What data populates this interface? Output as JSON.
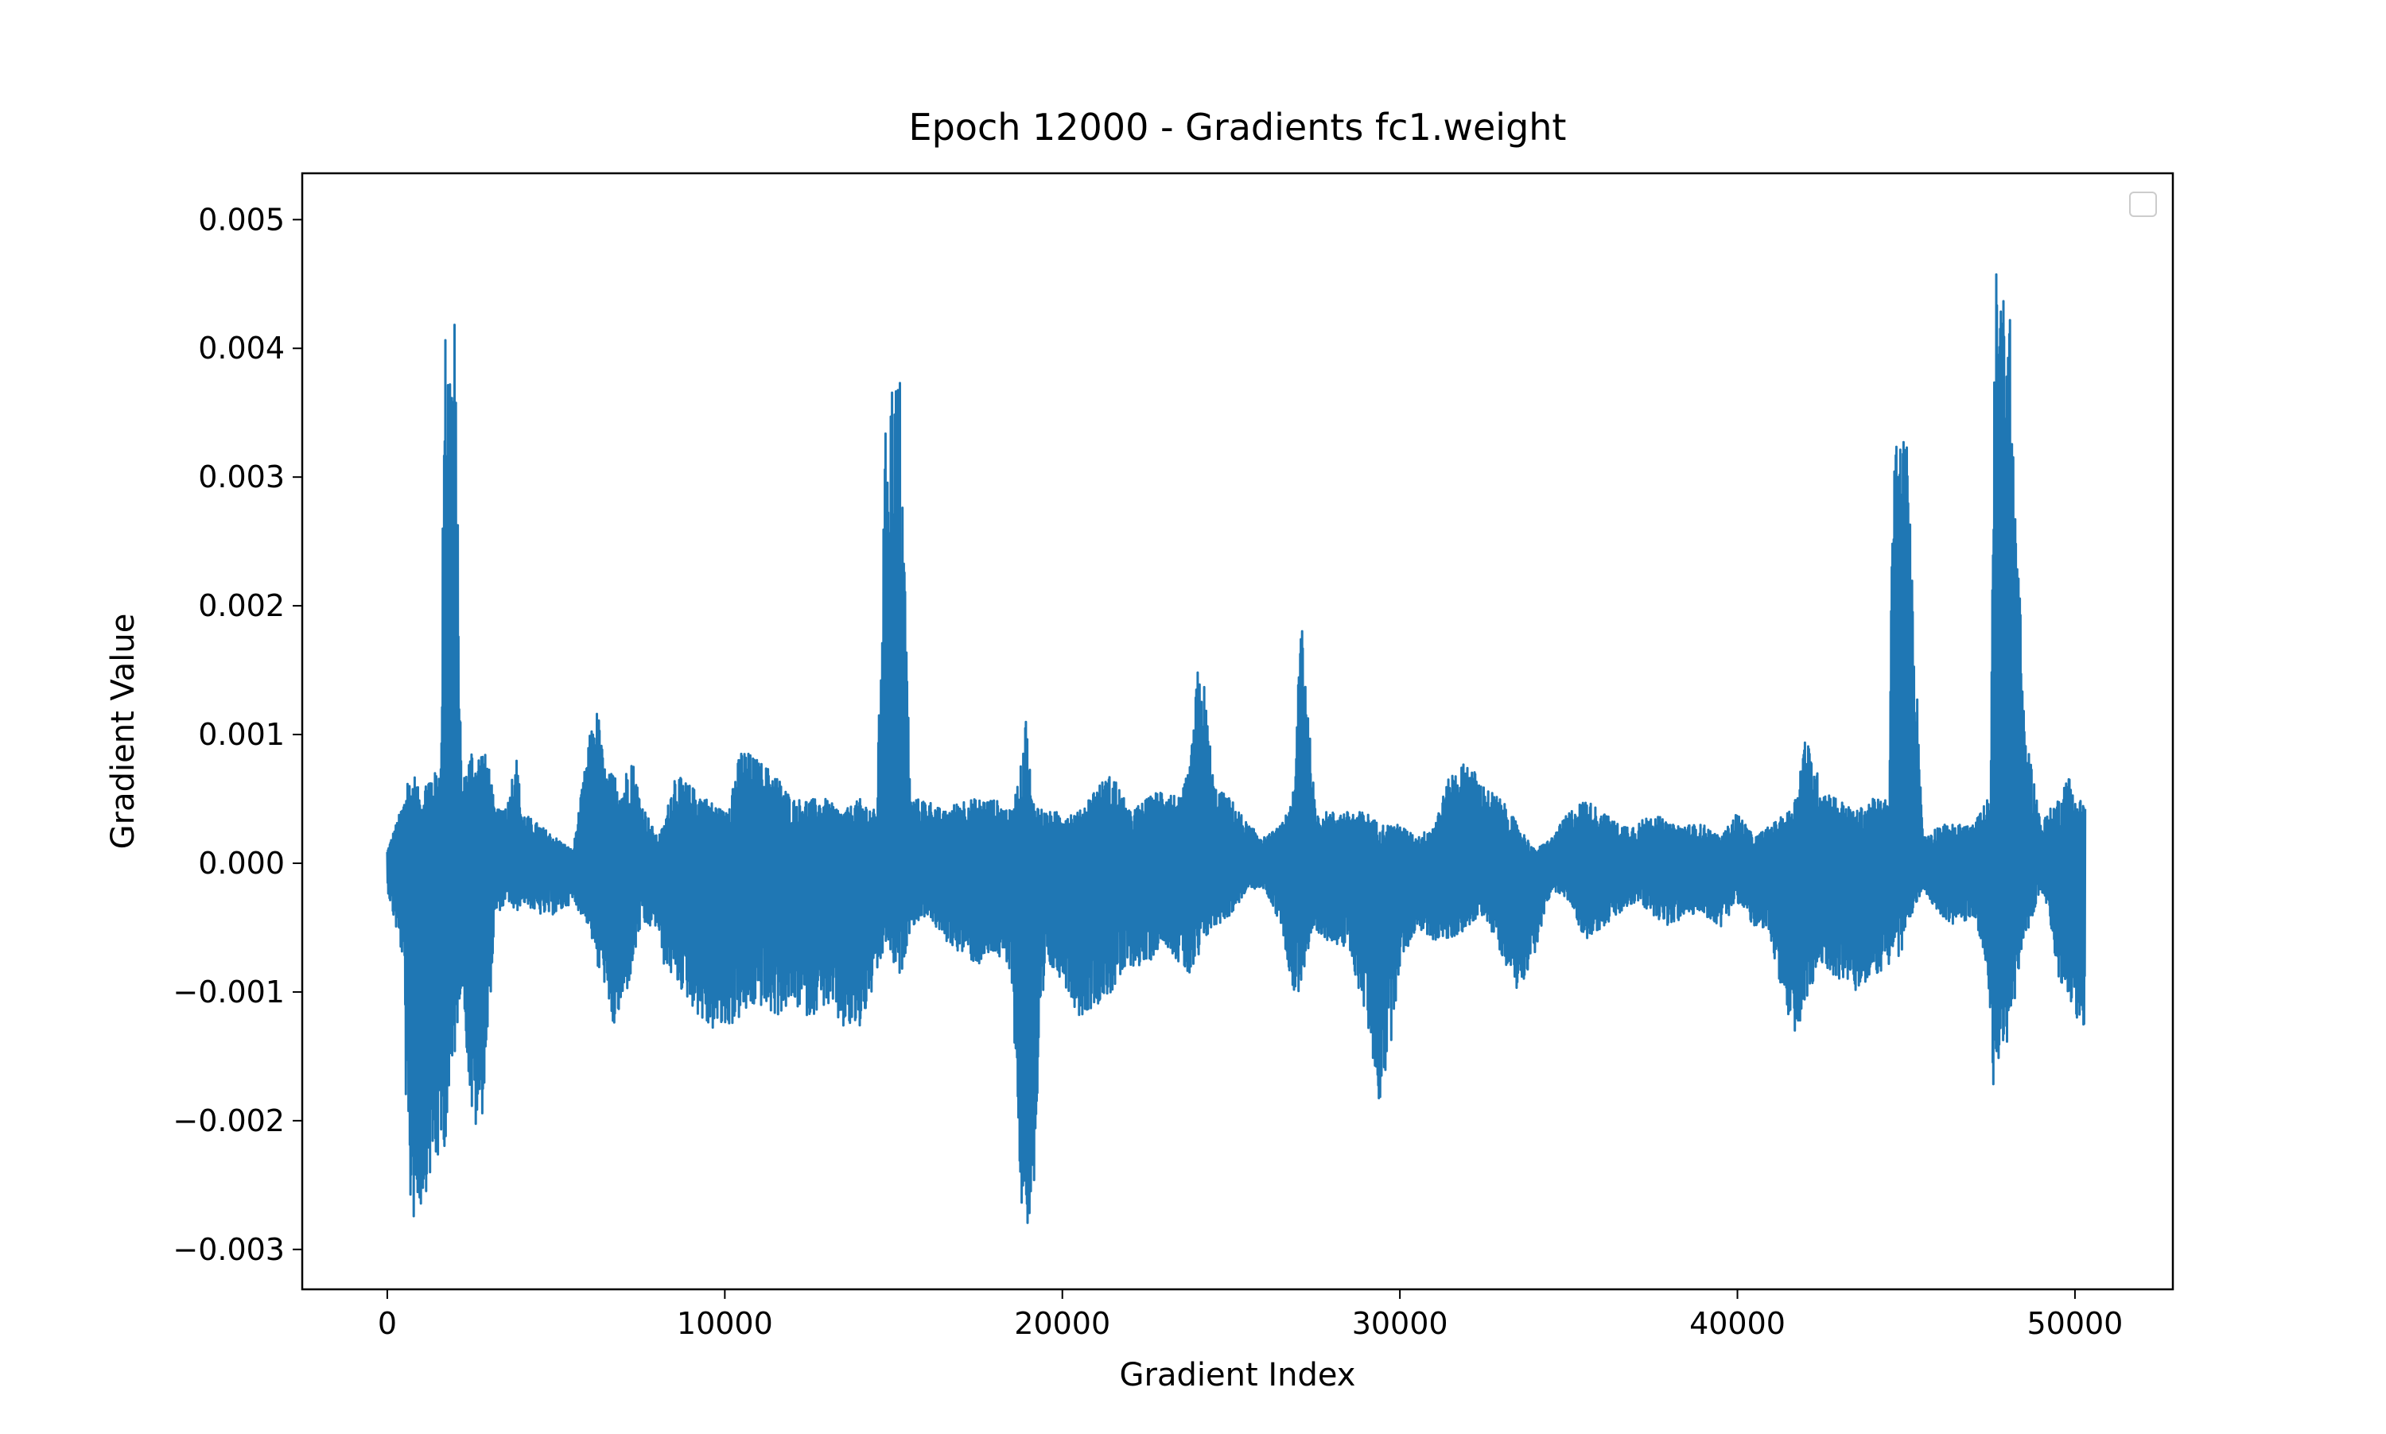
{
  "chart_data": {
    "type": "line",
    "title": "Epoch 12000 - Gradients fc1.weight",
    "xlabel": "Gradient Index",
    "ylabel": "Gradient Value",
    "xlim": [
      -2520,
      52900
    ],
    "ylim": [
      -0.00331,
      0.00536
    ],
    "x_ticks": [
      0,
      10000,
      20000,
      30000,
      40000,
      50000
    ],
    "x_tick_labels": [
      "0",
      "10000",
      "20000",
      "30000",
      "40000",
      "50000"
    ],
    "y_ticks": [
      -0.003,
      -0.002,
      -0.001,
      0.0,
      0.001,
      0.002,
      0.003,
      0.004,
      0.005
    ],
    "y_tick_labels": [
      "−0.003",
      "−0.002",
      "−0.001",
      "0.000",
      "0.001",
      "0.002",
      "0.003",
      "0.004",
      "0.005"
    ],
    "grid": false,
    "legend": "upper right (empty)",
    "line_color": "#1f77b4",
    "series": [
      {
        "x": [
          0,
          500,
          600,
          700,
          800,
          1000,
          1200,
          1400,
          1600,
          1700,
          1800,
          1900,
          2000,
          2200,
          2500,
          2600,
          2800,
          3000,
          3200,
          3600,
          3800,
          4000,
          4500,
          5000,
          5500,
          6000,
          6200,
          6300,
          6400,
          6500,
          6700,
          7000,
          7200,
          7500,
          8000,
          8200,
          8500,
          9000,
          9500,
          10000,
          10500,
          11000,
          11500,
          12000,
          12500,
          13000,
          13500,
          14000,
          14500,
          14800,
          14900,
          15000,
          15200,
          15500,
          16000,
          16500,
          17000,
          17500,
          18000,
          18500,
          18800,
          18900,
          19000,
          19100,
          19500,
          20000,
          20500,
          21000,
          21500,
          22000,
          22500,
          23000,
          23500,
          23800,
          24000,
          24200,
          24500,
          25000,
          25500,
          26000,
          26500,
          26900,
          27000,
          27100,
          27300,
          27500,
          28000,
          28500,
          29000,
          29400,
          29500,
          29600,
          30000,
          30500,
          31000,
          31500,
          32000,
          32500,
          33000,
          33500,
          34000,
          34500,
          35000,
          35500,
          36000,
          36500,
          37000,
          37500,
          38000,
          38500,
          39000,
          39500,
          40000,
          40500,
          41000,
          41500,
          41700,
          42000,
          42500,
          43000,
          43500,
          44000,
          44400,
          44500,
          44600,
          44700,
          44800,
          45000,
          45500,
          46000,
          46500,
          47000,
          47400,
          47500,
          47600,
          47700,
          47800,
          48000,
          48500,
          49000,
          49200,
          49500,
          49800,
          50000,
          50300
        ],
        "y_min": [
          -0.0002,
          -0.0008,
          -0.0028,
          -0.0027,
          -0.0028,
          -0.0027,
          -0.0025,
          -0.0024,
          -0.0023,
          -0.0022,
          -0.002,
          -0.0018,
          -0.0015,
          -0.0009,
          -0.002,
          -0.0021,
          -0.002,
          -0.0013,
          -0.0004,
          -0.0003,
          -0.0004,
          -0.0003,
          -0.0004,
          -0.0004,
          -0.0003,
          -0.0005,
          -0.0008,
          -0.0009,
          -0.0008,
          -0.0012,
          -0.0013,
          -0.0011,
          -0.0009,
          -0.0005,
          -0.0005,
          -0.0008,
          -0.0009,
          -0.0011,
          -0.0013,
          -0.0013,
          -0.0012,
          -0.0011,
          -0.0012,
          -0.0011,
          -0.0012,
          -0.0011,
          -0.0013,
          -0.0013,
          -0.0009,
          -0.0006,
          -0.0007,
          -0.0008,
          -0.0009,
          -0.0005,
          -0.0004,
          -0.0006,
          -0.0007,
          -0.0008,
          -0.0007,
          -0.0009,
          -0.0028,
          -0.0029,
          -0.0028,
          -0.0029,
          -0.0008,
          -0.0009,
          -0.0012,
          -0.0011,
          -0.001,
          -0.0008,
          -0.0008,
          -0.0006,
          -0.0008,
          -0.0009,
          -0.0008,
          -0.0006,
          -0.0005,
          -0.0004,
          -0.0002,
          -0.0002,
          -0.0005,
          -0.0011,
          -0.001,
          -0.0009,
          -0.0007,
          -0.0006,
          -0.0006,
          -0.0007,
          -0.0012,
          -0.0019,
          -0.0016,
          -0.0017,
          -0.0008,
          -0.0005,
          -0.0006,
          -0.0006,
          -0.0005,
          -0.0004,
          -0.0007,
          -0.001,
          -0.0007,
          -0.0002,
          -0.0003,
          -0.0006,
          -0.0005,
          -0.0004,
          -0.0003,
          -0.0004,
          -0.0005,
          -0.0004,
          -0.0004,
          -0.0005,
          -0.0003,
          -0.0005,
          -0.0006,
          -0.0013,
          -0.0014,
          -0.0011,
          -0.0008,
          -0.0009,
          -0.001,
          -0.0009,
          -0.0008,
          -0.0008,
          -0.0007,
          -0.0006,
          -0.0008,
          -0.0005,
          -0.0002,
          -0.0004,
          -0.0005,
          -0.0004,
          -0.0008,
          -0.0013,
          -0.002,
          -0.0015,
          -0.0016,
          -0.0014,
          -0.0006,
          -0.0002,
          -0.0004,
          -0.0009,
          -0.001,
          -0.0012,
          -0.0013,
          -0.0009,
          -0.0004
        ],
        "y_max": [
          0.0001,
          0.0005,
          0.0007,
          0.0006,
          0.0007,
          0.0005,
          0.0007,
          0.0007,
          0.0008,
          0.005,
          0.0041,
          0.004,
          0.0043,
          0.0006,
          0.0009,
          0.0008,
          0.0009,
          0.0008,
          0.0004,
          0.0005,
          0.0009,
          0.0004,
          0.0003,
          0.0002,
          0.0001,
          0.001,
          0.0012,
          0.0011,
          0.0008,
          0.0007,
          0.0007,
          0.0006,
          0.0009,
          0.0005,
          0.0002,
          0.0003,
          0.0007,
          0.0006,
          0.0005,
          0.0004,
          0.0009,
          0.0008,
          0.0007,
          0.0005,
          0.0005,
          0.0005,
          0.0004,
          0.0005,
          0.0004,
          0.0038,
          0.0038,
          0.0038,
          0.0038,
          0.0005,
          0.0005,
          0.0004,
          0.0005,
          0.0005,
          0.0005,
          0.0004,
          0.0008,
          0.0012,
          0.0009,
          0.0005,
          0.0004,
          0.0004,
          0.0004,
          0.0006,
          0.0007,
          0.0004,
          0.0005,
          0.0006,
          0.0005,
          0.0008,
          0.0015,
          0.0014,
          0.0006,
          0.0005,
          0.0003,
          0.0002,
          0.0003,
          0.0006,
          0.0017,
          0.0021,
          0.0011,
          0.0004,
          0.0004,
          0.0004,
          0.0004,
          0.0003,
          0.0003,
          0.0003,
          0.0003,
          0.0002,
          0.0003,
          0.0007,
          0.0008,
          0.0006,
          0.0005,
          0.0003,
          0.0001,
          0.0002,
          0.0004,
          0.0005,
          0.0004,
          0.0003,
          0.0003,
          0.0004,
          0.0003,
          0.0003,
          0.0003,
          0.0002,
          0.0004,
          0.0002,
          0.0003,
          0.0004,
          0.0005,
          0.001,
          0.0006,
          0.0005,
          0.0004,
          0.0005,
          0.0005,
          0.0004,
          0.0034,
          0.0034,
          0.0033,
          0.0034,
          0.0002,
          0.0003,
          0.0003,
          0.0003,
          0.0005,
          0.0004,
          0.0045,
          0.0047,
          0.0045,
          0.0048,
          0.0011,
          0.0003,
          0.0004,
          0.0005,
          0.0007,
          0.0005,
          0.0005,
          0.0004,
          0.0004
        ]
      }
    ]
  }
}
